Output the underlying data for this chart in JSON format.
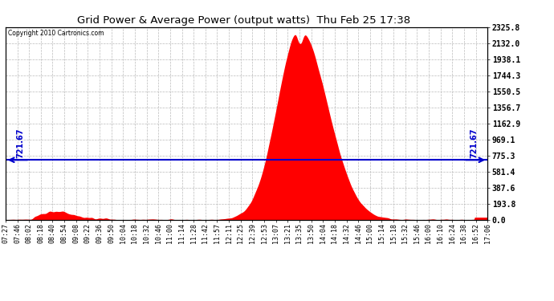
{
  "title": "Grid Power & Average Power (output watts)  Thu Feb 25 17:38",
  "copyright": "Copyright 2010 Cartronics.com",
  "avg_power": 721.67,
  "y_max": 2325.8,
  "y_ticks": [
    0.0,
    193.8,
    387.6,
    581.4,
    775.3,
    969.1,
    1162.9,
    1356.7,
    1550.5,
    1744.3,
    1938.1,
    2132.0,
    2325.8
  ],
  "x_labels": [
    "07:27",
    "07:46",
    "08:02",
    "08:18",
    "08:40",
    "08:54",
    "09:08",
    "09:22",
    "09:36",
    "09:50",
    "10:04",
    "10:18",
    "10:32",
    "10:46",
    "11:00",
    "11:14",
    "11:28",
    "11:42",
    "11:57",
    "12:11",
    "12:25",
    "12:39",
    "12:53",
    "13:07",
    "13:21",
    "13:35",
    "13:50",
    "14:04",
    "14:18",
    "14:32",
    "14:46",
    "15:00",
    "15:14",
    "15:18",
    "15:32",
    "15:46",
    "16:00",
    "16:10",
    "16:24",
    "16:38",
    "16:52",
    "17:06"
  ],
  "background_color": "#ffffff",
  "fill_color": "#ff0000",
  "grid_color": "#bbbbbb",
  "avg_line_color": "#0000cc",
  "title_fontsize": 10,
  "copyright_fontsize": 6
}
